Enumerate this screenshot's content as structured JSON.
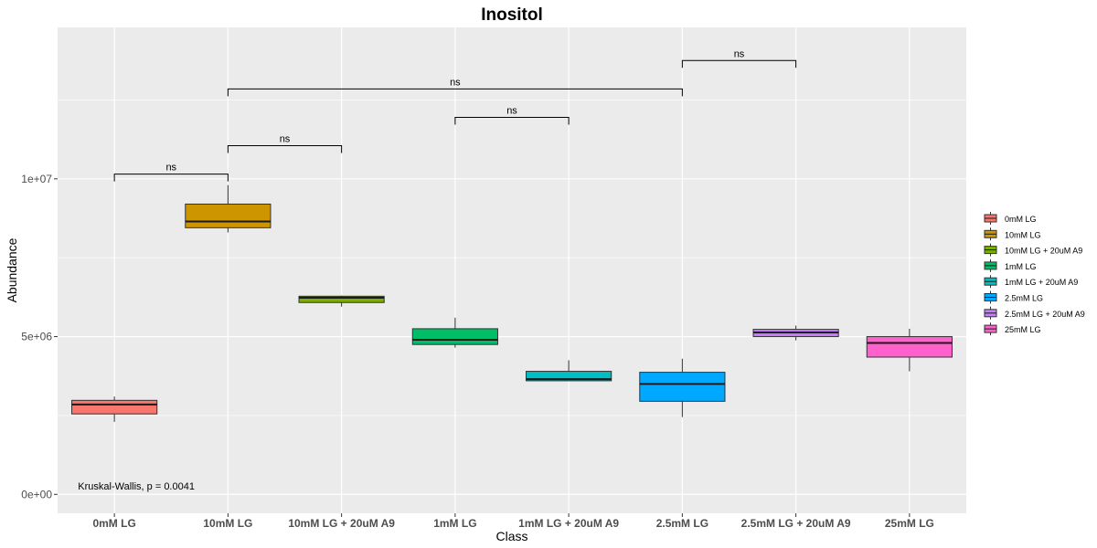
{
  "chart_data": {
    "type": "box",
    "title": "Inositol",
    "xlabel": "Class",
    "ylabel": "Abundance",
    "ylim": [
      -600000,
      14800000
    ],
    "y_ticks": [
      0,
      5000000,
      10000000
    ],
    "y_tick_labels": [
      "0e+00",
      "5e+06",
      "1e+07"
    ],
    "y_minor_ticks": [
      2500000,
      7500000,
      12500000
    ],
    "grid": true,
    "legend_position": "right",
    "categories": [
      "0mM LG",
      "10mM LG",
      "10mM LG + 20uM A9",
      "1mM LG",
      "1mM LG + 20uM A9",
      "2.5mM LG",
      "2.5mM LG + 20uM A9",
      "25mM LG"
    ],
    "boxes": [
      {
        "name": "0mM LG",
        "color": "#F8766D",
        "min": 2300000,
        "q1": 2550000,
        "median": 2850000,
        "q3": 2980000,
        "max": 3100000
      },
      {
        "name": "10mM LG",
        "color": "#CD9600",
        "min": 8300000,
        "q1": 8450000,
        "median": 8650000,
        "q3": 9200000,
        "max": 9800000
      },
      {
        "name": "10mM LG + 20uM A9",
        "color": "#7CAE00",
        "min": 5950000,
        "q1": 6080000,
        "median": 6230000,
        "q3": 6280000,
        "max": 6300000
      },
      {
        "name": "1mM LG",
        "color": "#00BE67",
        "min": 4650000,
        "q1": 4750000,
        "median": 4900000,
        "q3": 5250000,
        "max": 5600000
      },
      {
        "name": "1mM LG + 20uM A9",
        "color": "#00BFC4",
        "min": 3600000,
        "q1": 3600000,
        "median": 3650000,
        "q3": 3900000,
        "max": 4250000
      },
      {
        "name": "2.5mM LG",
        "color": "#00A9FF",
        "min": 2450000,
        "q1": 2950000,
        "median": 3500000,
        "q3": 3870000,
        "max": 4300000
      },
      {
        "name": "2.5mM LG + 20uM A9",
        "color": "#C77CFF",
        "min": 4880000,
        "q1": 5000000,
        "median": 5130000,
        "q3": 5230000,
        "max": 5350000
      },
      {
        "name": "25mM LG",
        "color": "#FF61CC",
        "min": 3900000,
        "q1": 4350000,
        "median": 4800000,
        "q3": 5000000,
        "max": 5250000
      }
    ],
    "significance": [
      {
        "from": 0,
        "to": 1,
        "y": 10150000,
        "label": "ns"
      },
      {
        "from": 1,
        "to": 2,
        "y": 11050000,
        "label": "ns"
      },
      {
        "from": 3,
        "to": 4,
        "y": 11950000,
        "label": "ns"
      },
      {
        "from": 1,
        "to": 5,
        "y": 12850000,
        "label": "ns"
      },
      {
        "from": 5,
        "to": 6,
        "y": 13750000,
        "label": "ns"
      }
    ],
    "annotation": {
      "text": "Kruskal-Wallis, p = 0.0041",
      "x_category": 0,
      "y": 100000
    }
  }
}
